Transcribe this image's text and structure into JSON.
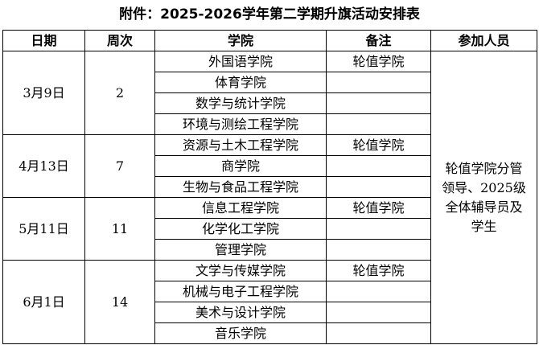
{
  "title": "附件：2025-2026学年第二学期升旗活动安排表",
  "table": {
    "headers": [
      "日期",
      "周次",
      "学院",
      "备注",
      "参加人员"
    ],
    "groups": [
      {
        "date": "3月9日",
        "week": 2,
        "rows": [
          {
            "college": "外国语学院",
            "note": "轮值学院"
          },
          {
            "college": "体育学院"
          },
          {
            "college": "数学与统计学院"
          },
          {
            "college": "环境与测绘工程学院"
          }
        ]
      },
      {
        "date": "4月13日",
        "week": 7,
        "rows": [
          {
            "college": "资源与土木工程学院",
            "note": "轮值学院"
          },
          {
            "college": "商学院"
          },
          {
            "college": "生物与食品工程学院"
          }
        ]
      },
      {
        "date": "5月11日",
        "week": 11,
        "rows": [
          {
            "college": "信息工程学院",
            "note": "轮值学院"
          },
          {
            "college": "化学化工学院"
          },
          {
            "college": "管理学院"
          }
        ]
      },
      {
        "date": "6月1日",
        "week": 14,
        "rows": [
          {
            "college": "文学与传媒学院",
            "note": "轮值学院"
          },
          {
            "college": "机械与电子工程学院"
          },
          {
            "college": "美术与设计学院"
          },
          {
            "college": "音乐学院"
          }
        ]
      }
    ],
    "participants": "轮值学院分管领导、2025级全体辅导员及学生"
  }
}
